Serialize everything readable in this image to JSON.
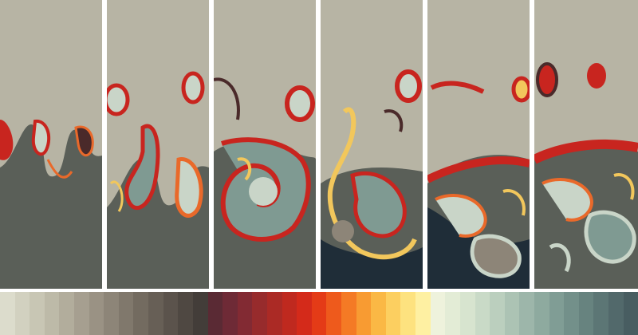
{
  "figure": {
    "panel_count": 6,
    "panels": [
      {
        "id": "t1"
      },
      {
        "id": "t2"
      },
      {
        "id": "t3"
      },
      {
        "id": "t4"
      },
      {
        "id": "t5"
      },
      {
        "id": "t6"
      }
    ]
  },
  "colors": {
    "upper_fluid": "#b7b4a4",
    "lower_fluid": "#5a5f58",
    "deep_fluid": "#1f2d38",
    "mix_light": "#c9d5c8",
    "mix_teal": "#7f9a92",
    "hot_red": "#c8251f",
    "hot_orange": "#e9692a",
    "hot_yellow": "#f2c75c",
    "dark_rim": "#4a2a2a",
    "separator": "#ffffff"
  },
  "colorbar": {
    "swatches": [
      "#dcdccc",
      "#d2d1c0",
      "#c8c6b4",
      "#bdbaa8",
      "#b2ad9c",
      "#a69f90",
      "#9a9284",
      "#8d8578",
      "#80786c",
      "#736b60",
      "#675f56",
      "#5b534c",
      "#4f4842",
      "#433d39",
      "#5a2a34",
      "#6e2a36",
      "#822a33",
      "#972b2c",
      "#ab2a25",
      "#bf291f",
      "#d42a1a",
      "#e43b17",
      "#ee5a1c",
      "#f47a25",
      "#f89b32",
      "#fab845",
      "#fccf60",
      "#fde27f",
      "#fef0a2",
      "#eef2dc",
      "#e3ecd6",
      "#d7e4cf",
      "#c9dac7",
      "#bbcfbe",
      "#acc3b4",
      "#9db6aa",
      "#8eaa9f",
      "#809d95",
      "#73908a",
      "#67837f",
      "#5c7675",
      "#52696b",
      "#485d61"
    ]
  }
}
